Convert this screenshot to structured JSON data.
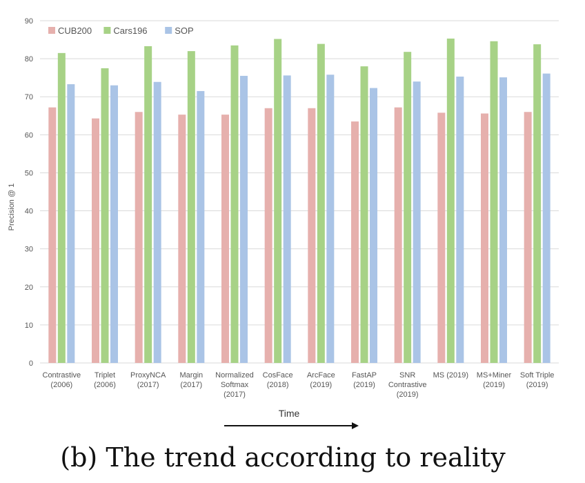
{
  "caption": "(b) The trend according to reality",
  "time_label": "Time",
  "chart_data": {
    "type": "bar",
    "ylabel": "Precision @ 1",
    "xlabel": "",
    "ylim": [
      0,
      90
    ],
    "yticks": [
      0,
      10,
      20,
      30,
      40,
      50,
      60,
      70,
      80,
      90
    ],
    "grid": true,
    "legend_position": "top-left",
    "categories": [
      [
        "Contrastive",
        "(2006)"
      ],
      [
        "Triplet",
        "(2006)"
      ],
      [
        "ProxyNCA",
        "(2017)"
      ],
      [
        "Margin",
        "(2017)"
      ],
      [
        "Normalized",
        "Softmax",
        "(2017)"
      ],
      [
        "CosFace",
        "(2018)"
      ],
      [
        "ArcFace",
        "(2019)"
      ],
      [
        "FastAP",
        "(2019)"
      ],
      [
        "SNR",
        "Contrastive",
        "(2019)"
      ],
      [
        "MS (2019)"
      ],
      [
        "MS+Miner",
        "(2019)"
      ],
      [
        "Soft Triple",
        "(2019)"
      ]
    ],
    "series": [
      {
        "name": "CUB200",
        "color": "#e6b0ad",
        "values": [
          67.2,
          64.3,
          66.0,
          65.3,
          65.3,
          67.0,
          67.0,
          63.5,
          67.2,
          65.8,
          65.6,
          66.0
        ]
      },
      {
        "name": "Cars196",
        "color": "#a7d286",
        "values": [
          81.5,
          77.5,
          83.3,
          82.0,
          83.5,
          85.2,
          83.9,
          78.0,
          81.8,
          85.3,
          84.6,
          83.8
        ]
      },
      {
        "name": "SOP",
        "color": "#aac4e6",
        "values": [
          73.3,
          73.0,
          73.9,
          71.5,
          75.5,
          75.6,
          75.8,
          72.3,
          74.0,
          75.3,
          75.1,
          76.1
        ]
      }
    ]
  }
}
